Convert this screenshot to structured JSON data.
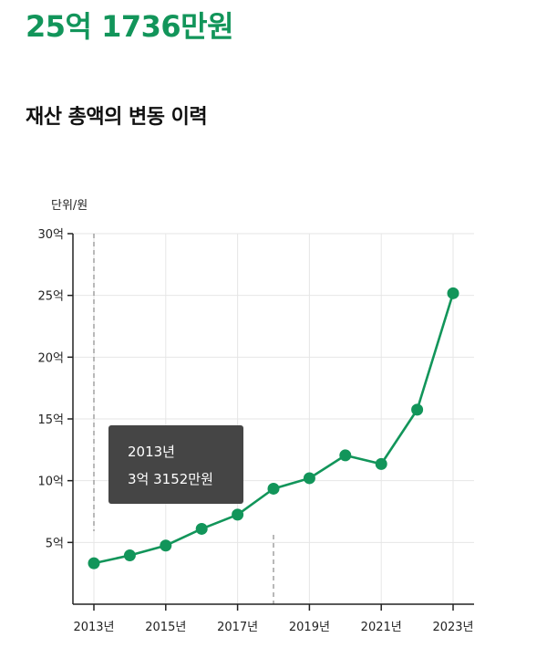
{
  "header": {
    "total_amount": "25억 1736만원",
    "section_title": "재산 총액의 변동 이력"
  },
  "colors": {
    "accent": "#12955a",
    "grid": "#e6e6e6",
    "axis": "#222222",
    "tooltip_bg": "#454545",
    "dashed": "#8a8a8a"
  },
  "chart_data": {
    "type": "line",
    "unit_label": "단위/원",
    "x": [
      2013,
      2014,
      2015,
      2016,
      2017,
      2018,
      2019,
      2020,
      2021,
      2022,
      2023
    ],
    "x_tick_values": [
      2013,
      2015,
      2017,
      2019,
      2021,
      2023
    ],
    "x_tick_labels": [
      "2013년",
      "2015년",
      "2017년",
      "2019년",
      "2021년",
      "2023년"
    ],
    "y_tick_values": [
      5,
      10,
      15,
      20,
      25,
      30
    ],
    "y_tick_labels": [
      "5억",
      "10억",
      "15억",
      "20억",
      "25억",
      "30억"
    ],
    "ylim": [
      0,
      30
    ],
    "series": [
      {
        "values": [
          3.3152,
          3.95,
          4.75,
          6.1,
          7.25,
          9.35,
          10.2,
          12.05,
          11.35,
          15.75,
          25.1736
        ]
      }
    ],
    "grid": true,
    "tooltip": {
      "year_label": "2013년",
      "value_label": "3억 3152만원"
    }
  }
}
